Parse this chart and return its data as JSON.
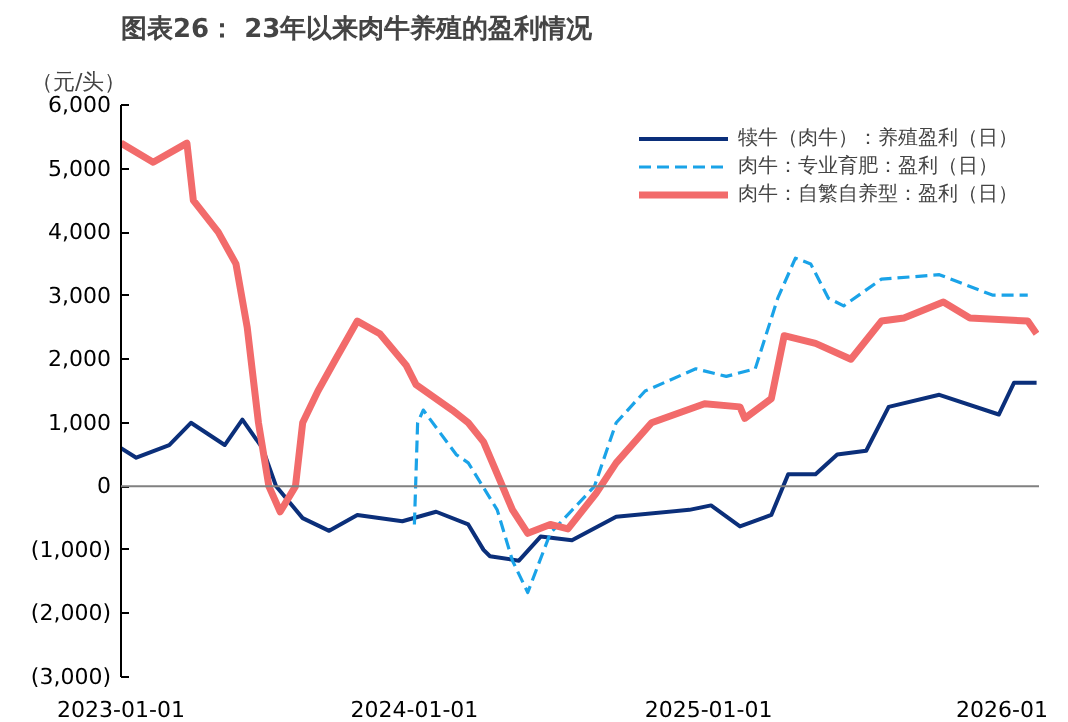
{
  "chart_data": {
    "type": "line",
    "title": "图表26： 23年以来肉牛养殖的盈利情况",
    "ylabel": "（元/头）",
    "xlim": [
      "2023-01-01",
      "2026-02-16"
    ],
    "xticks": [
      {
        "value": "2023-01-01",
        "label": "2023-01-01"
      },
      {
        "value": "2024-01-01",
        "label": "2024-01-01"
      },
      {
        "value": "2025-01-01",
        "label": "2025-01-01"
      },
      {
        "value": "2026-01-01",
        "label": "2026-01"
      }
    ],
    "ylim": [
      -3000,
      6000
    ],
    "yticks": [
      {
        "value": -3000,
        "label": "(3,000)"
      },
      {
        "value": -2000,
        "label": "(2,000)"
      },
      {
        "value": -1000,
        "label": "(1,000)"
      },
      0,
      {
        "value": 1000,
        "label": "1,000"
      },
      {
        "value": 2000,
        "label": "2,000"
      },
      {
        "value": 3000,
        "label": "3,000"
      },
      {
        "value": 4000,
        "label": "4,000"
      },
      {
        "value": 5000,
        "label": "5,000"
      },
      {
        "value": 6000,
        "label": "6,000"
      }
    ],
    "grid": false,
    "legend": "top right",
    "ref_lines": [
      {
        "axis": "y",
        "value": 0,
        "label": null,
        "color": "#808080"
      }
    ],
    "series": [
      {
        "name": "犊牛（肉牛）：养殖盈利（日）",
        "color": "#0b2f7a",
        "line_style": "solid",
        "x": [
          "2023-01-01",
          "2023-01-20",
          "2023-03-02",
          "2023-03-29",
          "2023-05-10",
          "2023-06-01",
          "2023-06-26",
          "2023-07-13",
          "2023-08-15",
          "2023-09-17",
          "2023-10-22",
          "2023-12-17",
          "2024-01-28",
          "2024-03-08",
          "2024-03-27",
          "2024-04-04",
          "2024-05-10",
          "2024-06-06",
          "2024-07-15",
          "2024-09-08",
          "2024-12-08",
          "2025-01-04",
          "2025-02-09",
          "2025-03-20",
          "2025-04-10",
          "2025-05-14",
          "2025-06-10",
          "2025-07-16",
          "2025-08-13",
          "2025-10-15",
          "2025-12-28",
          "2026-01-16",
          "2026-02-13"
        ],
        "values": [
          600,
          450,
          650,
          1000,
          650,
          1050,
          600,
          0,
          -500,
          -700,
          -450,
          -550,
          -400,
          -600,
          -1000,
          -1100,
          -1170,
          -790,
          -850,
          -480,
          -370,
          -300,
          -630,
          -450,
          190,
          190,
          500,
          560,
          1250,
          1440,
          1130,
          1630,
          1630
        ]
      },
      {
        "name": "肉牛：专业育肥：盈利（日）",
        "color": "#1aa3e8",
        "line_style": "dashed",
        "x": [
          "2024-01-01",
          "2024-01-05",
          "2024-01-12",
          "2024-02-22",
          "2024-03-08",
          "2024-04-13",
          "2024-05-02",
          "2024-05-21",
          "2024-06-18",
          "2024-08-12",
          "2024-09-08",
          "2024-10-14",
          "2024-12-16",
          "2025-01-23",
          "2025-02-28",
          "2025-03-28",
          "2025-04-19",
          "2025-05-08",
          "2025-05-30",
          "2025-06-18",
          "2025-08-04",
          "2025-10-15",
          "2025-12-20",
          "2026-02-02"
        ],
        "values": [
          -600,
          1000,
          1200,
          500,
          370,
          -370,
          -1170,
          -1670,
          -740,
          0,
          1000,
          1500,
          1850,
          1730,
          1850,
          2960,
          3590,
          3500,
          2960,
          2840,
          3260,
          3330,
          3010,
          3010
        ]
      },
      {
        "name": "肉牛：自繁自养型：盈利（日）",
        "color": "#f26b6b",
        "line_style": "solid",
        "x": [
          "2023-01-01",
          "2023-02-10",
          "2023-03-24",
          "2023-04-01",
          "2023-05-02",
          "2023-05-24",
          "2023-06-07",
          "2023-06-21",
          "2023-07-04",
          "2023-07-18",
          "2023-08-06",
          "2023-08-15",
          "2023-09-03",
          "2023-09-25",
          "2023-10-22",
          "2023-11-19",
          "2023-12-22",
          "2024-01-03",
          "2024-02-17",
          "2024-03-08",
          "2024-03-27",
          "2024-05-02",
          "2024-05-21",
          "2024-06-18",
          "2024-07-10",
          "2024-08-14",
          "2024-09-08",
          "2024-10-22",
          "2024-12-27",
          "2025-02-09",
          "2025-02-15",
          "2025-03-20",
          "2025-04-05",
          "2025-05-14",
          "2025-06-27",
          "2025-08-04",
          "2025-09-01",
          "2025-10-20",
          "2025-11-22",
          "2026-02-02",
          "2026-02-13"
        ],
        "values": [
          5400,
          5100,
          5400,
          4500,
          4000,
          3500,
          2500,
          1000,
          0,
          -400,
          0,
          1000,
          1500,
          2000,
          2600,
          2400,
          1900,
          1600,
          1200,
          1000,
          700,
          -370,
          -740,
          -600,
          -670,
          -110,
          370,
          1000,
          1300,
          1250,
          1070,
          1380,
          2370,
          2250,
          2000,
          2600,
          2650,
          2900,
          2650,
          2600,
          2400
        ]
      }
    ]
  }
}
